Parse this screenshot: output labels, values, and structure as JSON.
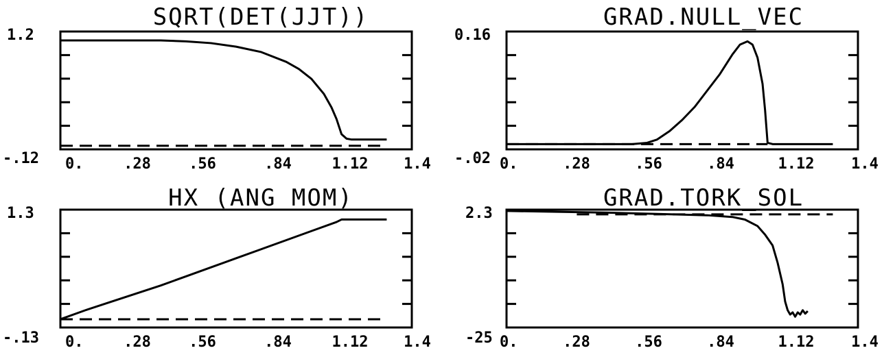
{
  "chart_data": [
    {
      "type": "line",
      "title": "SQRT(DET(JJT))",
      "xlabel": "",
      "ylabel": "",
      "xlim": [
        0,
        1.4
      ],
      "ylim": [
        -0.12,
        1.2
      ],
      "x_tick_labels": [
        "0.",
        ".28",
        ".56",
        ".84",
        "1.12",
        "1.4"
      ],
      "y_tick_labels": [
        "1.2",
        "-.12"
      ],
      "series": [
        {
          "x": [
            0,
            0.1,
            0.2,
            0.3,
            0.4,
            0.5,
            0.6,
            0.7,
            0.8,
            0.9,
            0.95,
            1.0,
            1.05,
            1.08,
            1.1,
            1.12,
            1.14,
            1.16,
            1.3
          ],
          "y": [
            1.1,
            1.1,
            1.1,
            1.1,
            1.1,
            1.09,
            1.07,
            1.03,
            0.97,
            0.86,
            0.78,
            0.67,
            0.5,
            0.35,
            0.22,
            0.05,
            0.0,
            -0.01,
            -0.01
          ]
        },
        {
          "x": [
            0,
            1.3
          ],
          "y": [
            -0.08,
            -0.08
          ],
          "style": "dashed"
        }
      ]
    },
    {
      "type": "line",
      "title": "GRAD.NULL_VEC",
      "xlabel": "",
      "ylabel": "",
      "xlim": [
        0,
        1.4
      ],
      "ylim": [
        -0.02,
        0.16
      ],
      "x_tick_labels": [
        "0.",
        ".28",
        ".56",
        ".84",
        "1.12",
        "1.4"
      ],
      "y_tick_labels": [
        "0.16",
        "-.02"
      ],
      "series": [
        {
          "x": [
            0,
            0.5,
            0.56,
            0.6,
            0.65,
            0.7,
            0.75,
            0.8,
            0.85,
            0.9,
            0.93,
            0.96,
            0.98,
            1.0,
            1.02,
            1.03,
            1.04,
            1.06,
            1.3
          ],
          "y": [
            -0.012,
            -0.012,
            -0.01,
            -0.005,
            0.008,
            0.025,
            0.045,
            0.07,
            0.095,
            0.125,
            0.14,
            0.145,
            0.14,
            0.12,
            0.08,
            0.04,
            -0.01,
            -0.012,
            -0.012
          ]
        },
        {
          "x": [
            0,
            1.04
          ],
          "y": [
            -0.012,
            -0.012
          ],
          "style": "dashed"
        }
      ]
    },
    {
      "type": "line",
      "title": "HX (ANG MOM)",
      "xlabel": "",
      "ylabel": "",
      "xlim": [
        0,
        1.4
      ],
      "ylim": [
        -0.13,
        1.3
      ],
      "x_tick_labels": [
        "0.",
        ".28",
        ".56",
        ".84",
        "1.12",
        "1.4"
      ],
      "y_tick_labels": [
        "1.3",
        "-.13"
      ],
      "series": [
        {
          "x": [
            0,
            0.1,
            0.2,
            0.3,
            0.4,
            0.5,
            0.6,
            0.7,
            0.8,
            0.9,
            1.0,
            1.1,
            1.12,
            1.3
          ],
          "y": [
            -0.03,
            0.08,
            0.18,
            0.28,
            0.38,
            0.49,
            0.6,
            0.71,
            0.82,
            0.93,
            1.04,
            1.15,
            1.18,
            1.18
          ]
        },
        {
          "x": [
            0,
            1.3
          ],
          "y": [
            -0.03,
            -0.03
          ],
          "style": "dashed"
        }
      ]
    },
    {
      "type": "line",
      "title": "GRAD.TORK_SOL",
      "xlabel": "",
      "ylabel": "",
      "xlim": [
        0,
        1.4
      ],
      "ylim": [
        -25,
        2.3
      ],
      "x_tick_labels": [
        "0.",
        ".28",
        ".56",
        ".84",
        "1.12",
        "1.4"
      ],
      "y_tick_labels": [
        "2.3",
        "-25"
      ],
      "series": [
        {
          "x": [
            0,
            0.2,
            0.4,
            0.6,
            0.8,
            0.9,
            0.95,
            1.0,
            1.03,
            1.06,
            1.08,
            1.1,
            1.11,
            1.12,
            1.13,
            1.14,
            1.15,
            1.16,
            1.17,
            1.18,
            1.19,
            1.2
          ],
          "y": [
            2.0,
            1.8,
            1.6,
            1.3,
            1.0,
            0.6,
            0.0,
            -1.5,
            -3.5,
            -6.0,
            -10.0,
            -15.0,
            -19.0,
            -21.0,
            -22.0,
            -21.5,
            -22.5,
            -21.5,
            -22.0,
            -21.0,
            -21.8,
            -21.2
          ]
        },
        {
          "x": [
            0.28,
            1.3
          ],
          "y": [
            1.2,
            1.2
          ],
          "style": "dashed"
        }
      ]
    }
  ]
}
